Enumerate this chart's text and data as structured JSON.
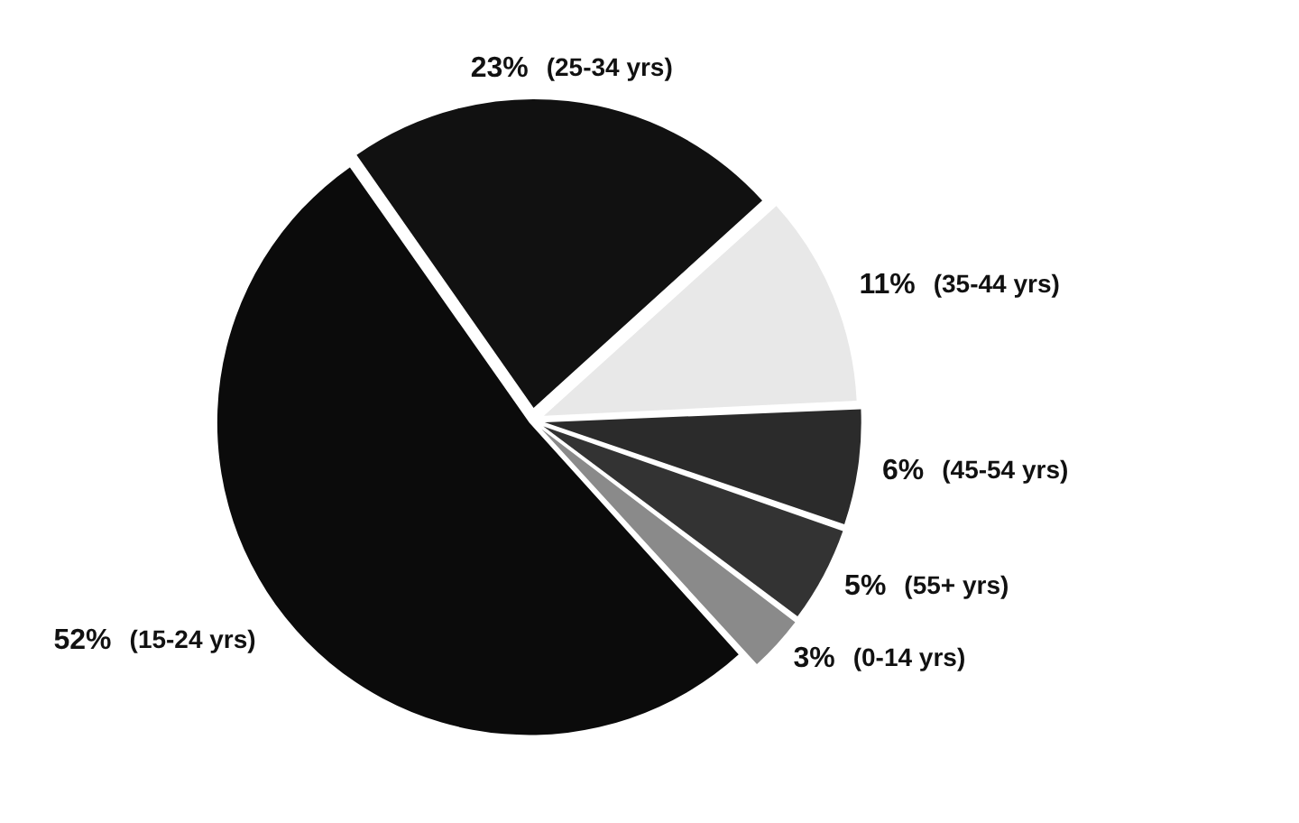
{
  "chart_data": {
    "type": "pie",
    "categories": [
      "(25-34 yrs)",
      "(35-44 yrs)",
      "(45-54 yrs)",
      "(55+ yrs)",
      "(0-14 yrs)",
      "(15-24 yrs)"
    ],
    "values": [
      23,
      11,
      6,
      5,
      3,
      52
    ],
    "value_labels": [
      "23%",
      "11%",
      "6%",
      "5%",
      "3%",
      "52%"
    ],
    "colors": [
      "#111111",
      "#e8e8e8",
      "#2b2b2b",
      "#333333",
      "#8a8a8a",
      "#0b0b0b"
    ],
    "legend": false
  }
}
